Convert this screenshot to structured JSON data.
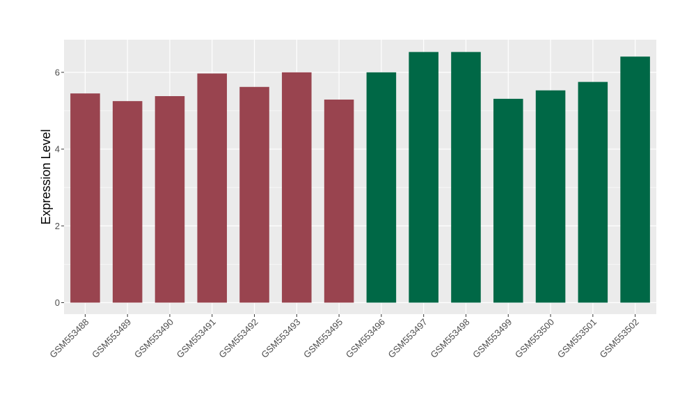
{
  "chart_data": {
    "type": "bar",
    "title": "",
    "xlabel": "",
    "ylabel": "Expression Level",
    "categories": [
      "GSM553488",
      "GSM553489",
      "GSM553490",
      "GSM553491",
      "GSM553492",
      "GSM553493",
      "GSM553495",
      "GSM553496",
      "GSM553497",
      "GSM553498",
      "GSM553499",
      "GSM553500",
      "GSM553501",
      "GSM553502"
    ],
    "values": [
      5.45,
      5.25,
      5.38,
      5.97,
      5.62,
      6.0,
      5.29,
      6.0,
      6.53,
      6.53,
      5.31,
      5.53,
      5.75,
      6.41
    ],
    "bar_colors": [
      "#99444f",
      "#99444f",
      "#99444f",
      "#99444f",
      "#99444f",
      "#99444f",
      "#99444f",
      "#006846",
      "#006846",
      "#006846",
      "#006846",
      "#006846",
      "#006846",
      "#006846"
    ],
    "ylim": [
      -0.3,
      6.85
    ],
    "yticks": [
      0,
      2,
      4,
      6
    ],
    "grid": true,
    "legend": "none",
    "colors": {
      "panel_background": "#ebebeb",
      "grid_major": "#ffffff",
      "group_1": "#99444f",
      "group_2": "#006846"
    }
  }
}
